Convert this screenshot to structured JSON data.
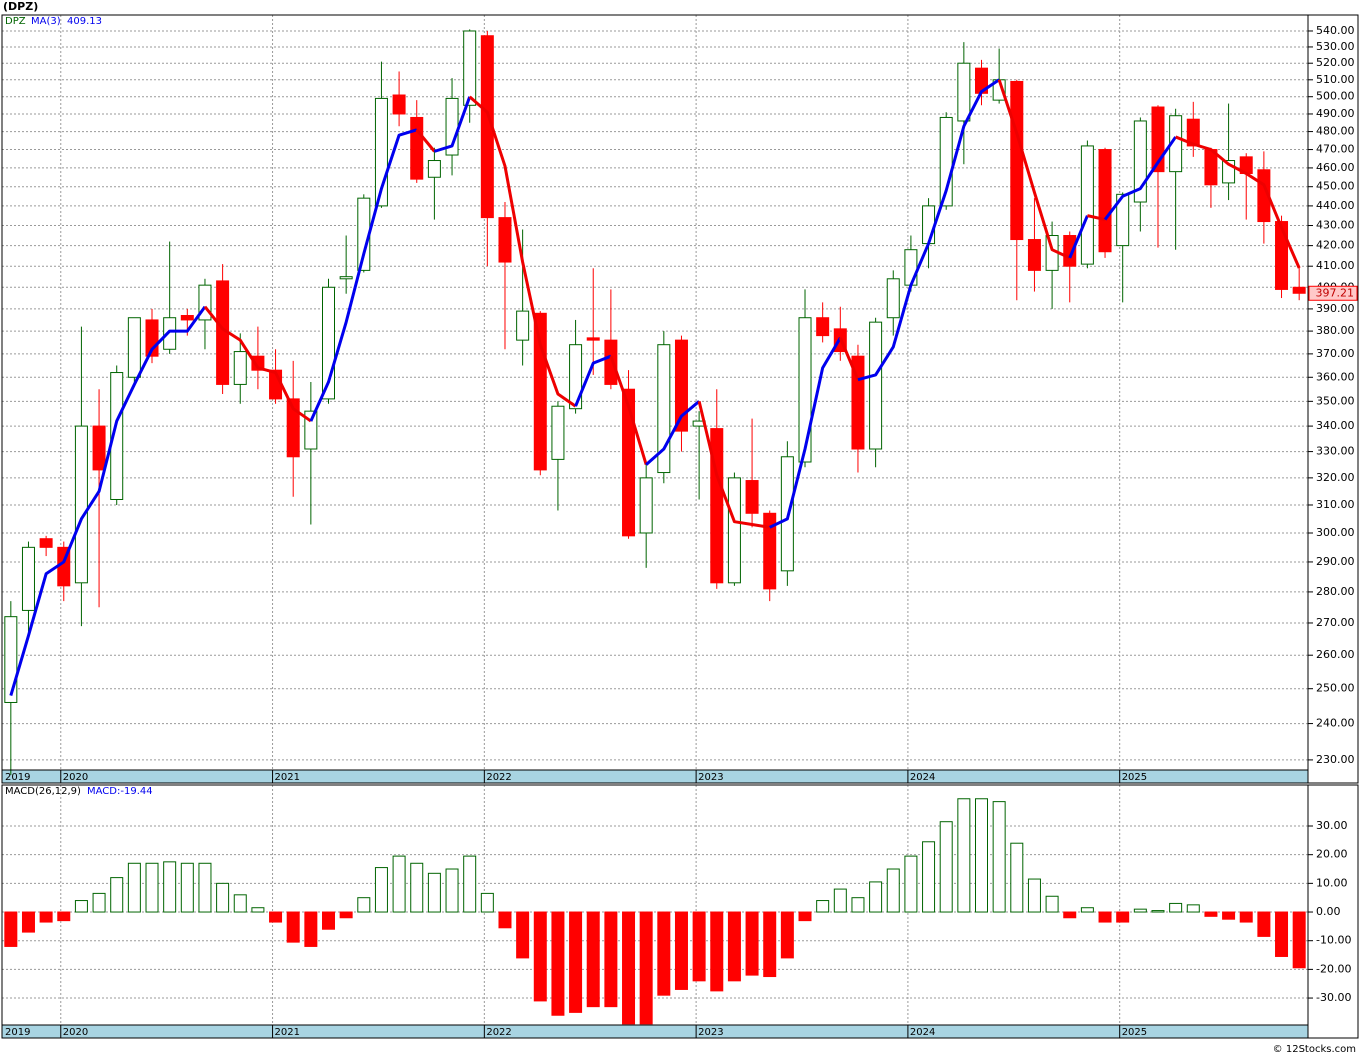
{
  "chart_data": [
    {
      "type": "candlestick",
      "title": "(DPZ)",
      "series_name": "DPZ",
      "log": true,
      "grid": true,
      "up_color": "#006400",
      "down_color": "#ff0000",
      "categories": [
        "2019",
        null,
        null,
        "2020",
        null,
        null,
        null,
        null,
        null,
        null,
        null,
        null,
        null,
        null,
        null,
        "2021",
        null,
        null,
        null,
        null,
        null,
        null,
        null,
        null,
        null,
        null,
        null,
        "2022",
        null,
        null,
        null,
        null,
        null,
        null,
        null,
        null,
        null,
        null,
        null,
        "2023",
        null,
        null,
        null,
        null,
        null,
        null,
        null,
        null,
        null,
        null,
        null,
        "2024",
        null,
        null,
        null,
        null,
        null,
        null,
        null,
        null,
        null,
        null,
        null,
        "2025",
        null,
        null,
        null,
        null,
        null,
        null,
        null,
        null,
        null,
        null
      ],
      "open": [
        246,
        274,
        298,
        295,
        283,
        340,
        312,
        360,
        385,
        372,
        387,
        385,
        403,
        357,
        369,
        363,
        351,
        331,
        351,
        404,
        408,
        440,
        501,
        488,
        455,
        467,
        495,
        537,
        434,
        376,
        388,
        327,
        347,
        377,
        376,
        355,
        300,
        322,
        376,
        340,
        339,
        283,
        319,
        307,
        287,
        326,
        386,
        381,
        369,
        331,
        386,
        401,
        421,
        440,
        486,
        517,
        498,
        509,
        423,
        408,
        425,
        411,
        470,
        420,
        442,
        494,
        458,
        487,
        470,
        452,
        466,
        459,
        432,
        400
      ],
      "high": [
        277,
        297,
        299,
        297,
        382,
        355,
        365,
        386,
        390,
        422,
        390,
        404,
        411,
        379,
        382,
        372,
        367,
        358,
        404,
        425,
        446,
        521,
        515,
        498,
        471,
        511,
        541,
        540,
        442,
        428,
        389,
        350,
        385,
        409,
        399,
        363,
        326,
        380,
        378,
        346,
        355,
        322,
        343,
        308,
        334,
        399,
        393,
        391,
        374,
        386,
        408,
        425,
        444,
        491,
        533,
        522,
        529,
        510,
        444,
        432,
        427,
        475,
        471,
        447,
        488,
        495,
        493,
        497,
        471,
        496,
        468,
        469,
        435,
        410
      ],
      "low": [
        226,
        265,
        292,
        277,
        269,
        275,
        310,
        356,
        366,
        370,
        378,
        372,
        353,
        349,
        355,
        349,
        313,
        303,
        349,
        397,
        407,
        439,
        483,
        452,
        433,
        456,
        485,
        410,
        372,
        365,
        321,
        308,
        345,
        361,
        355,
        298,
        288,
        318,
        330,
        312,
        281,
        282,
        302,
        277,
        282,
        324,
        375,
        367,
        322,
        324,
        378,
        398,
        409,
        438,
        462,
        495,
        496,
        394,
        398,
        390,
        393,
        409,
        414,
        393,
        427,
        419,
        418,
        466,
        439,
        443,
        433,
        421,
        395,
        394
      ],
      "close": [
        272,
        295,
        295,
        282,
        340,
        323,
        362,
        386,
        369,
        386,
        385,
        401,
        357,
        371,
        363,
        351,
        328,
        346,
        400,
        405,
        444,
        499,
        490,
        454,
        464,
        499,
        540,
        434,
        412,
        389,
        323,
        348,
        374,
        376,
        357,
        299,
        320,
        374,
        338,
        342,
        283,
        320,
        307,
        281,
        328,
        386,
        378,
        371,
        331,
        384,
        404,
        418,
        440,
        488,
        520,
        502,
        510,
        423,
        408,
        425,
        410,
        472,
        417,
        446,
        486,
        458,
        489,
        472,
        451,
        464,
        457,
        432,
        399,
        397.21
      ],
      "ma": {
        "name": "MA(3)",
        "up_color": "#0000ee",
        "down_color": "#ee0000",
        "values": [
          248,
          266,
          286,
          290,
          305,
          315,
          342,
          357,
          372,
          380,
          380,
          391,
          381,
          376,
          364,
          362,
          347,
          342,
          358,
          384,
          416,
          449,
          478,
          481,
          469,
          472,
          500,
          491,
          461,
          412,
          374,
          353,
          348,
          366,
          369,
          348,
          325,
          331,
          344,
          350,
          321,
          304,
          303,
          302,
          305,
          331,
          364,
          377,
          359,
          361,
          373,
          401,
          421,
          448,
          483,
          503,
          510,
          479,
          447,
          418,
          414,
          435,
          433,
          445,
          449,
          463,
          477,
          473,
          470,
          462,
          457,
          451,
          429,
          409.13
        ]
      },
      "ylim": [
        227.3,
        550.2
      ],
      "yticks": [
        {
          "value": 540,
          "label": "540.00"
        },
        {
          "value": 530,
          "label": "530.00"
        },
        {
          "value": 520,
          "label": "520.00"
        },
        {
          "value": 510,
          "label": "510.00"
        },
        {
          "value": 500,
          "label": "500.00"
        },
        {
          "value": 490,
          "label": "490.00"
        },
        {
          "value": 480,
          "label": "480.00"
        },
        {
          "value": 470,
          "label": "470.00"
        },
        {
          "value": 460,
          "label": "460.00"
        },
        {
          "value": 450,
          "label": "450.00"
        },
        {
          "value": 440,
          "label": "440.00"
        },
        {
          "value": 430,
          "label": "430.00"
        },
        {
          "value": 420,
          "label": "420.00"
        },
        {
          "value": 410,
          "label": "410.00"
        },
        {
          "value": 400,
          "label": "400.00"
        },
        {
          "value": 390,
          "label": "390.00"
        },
        {
          "value": 380,
          "label": "380.00"
        },
        {
          "value": 370,
          "label": "370.00"
        },
        {
          "value": 360,
          "label": "360.00"
        },
        {
          "value": 350,
          "label": "350.00"
        },
        {
          "value": 340,
          "label": "340.00"
        },
        {
          "value": 330,
          "label": "330.00"
        },
        {
          "value": 320,
          "label": "320.00"
        },
        {
          "value": 310,
          "label": "310.00"
        },
        {
          "value": 300,
          "label": "300.00"
        },
        {
          "value": 290,
          "label": "290.00"
        },
        {
          "value": 280,
          "label": "280.00"
        },
        {
          "value": 270,
          "label": "270.00"
        },
        {
          "value": 260,
          "label": "260.00"
        },
        {
          "value": 250,
          "label": "250.00"
        },
        {
          "value": 240,
          "label": "240.00"
        },
        {
          "value": 230,
          "label": "230.00"
        }
      ]
    },
    {
      "type": "bar",
      "name": "MACD(26,12,9)",
      "value_prefix": "MACD:",
      "grid": true,
      "up_color": "#006400",
      "down_color": "#ff0000",
      "categories": [
        "2019",
        null,
        null,
        "2020",
        null,
        null,
        null,
        null,
        null,
        null,
        null,
        null,
        null,
        null,
        null,
        "2021",
        null,
        null,
        null,
        null,
        null,
        null,
        null,
        null,
        null,
        null,
        null,
        "2022",
        null,
        null,
        null,
        null,
        null,
        null,
        null,
        null,
        null,
        null,
        null,
        "2023",
        null,
        null,
        null,
        null,
        null,
        null,
        null,
        null,
        null,
        null,
        null,
        "2024",
        null,
        null,
        null,
        null,
        null,
        null,
        null,
        null,
        null,
        null,
        null,
        "2025",
        null,
        null,
        null,
        null,
        null,
        null,
        null,
        null,
        null,
        null
      ],
      "values": [
        -12,
        -7,
        -3.5,
        -3,
        4,
        6.5,
        12,
        17,
        17,
        17.5,
        17,
        17,
        10,
        6,
        1.5,
        -3.5,
        -10.5,
        -12,
        -6,
        -2,
        5,
        15.5,
        19.5,
        17,
        13.5,
        15,
        19.5,
        6.5,
        -5.5,
        -16,
        -31,
        -36,
        -35,
        -33,
        -33,
        -39,
        -39,
        -29,
        -27,
        -24,
        -27.5,
        -24,
        -22,
        -22.5,
        -16,
        -3,
        4,
        8,
        5,
        10.5,
        15,
        19.5,
        24.5,
        31.5,
        39.5,
        39.5,
        38.5,
        24,
        11.5,
        5.5,
        -2,
        1.5,
        -3.5,
        -3.5,
        1,
        0.5,
        3,
        2.5,
        -1.5,
        -2.5,
        -3.5,
        -8.5,
        -15.5,
        -19.44
      ],
      "ylim": [
        -39.4,
        44.3
      ],
      "yticks": [
        {
          "value": 30,
          "label": "30.00"
        },
        {
          "value": 20,
          "label": "20.00"
        },
        {
          "value": 10,
          "label": "10.00"
        },
        {
          "value": 0,
          "label": "0.00"
        },
        {
          "value": -10,
          "label": "-10.00"
        },
        {
          "value": -20,
          "label": "-20.00"
        },
        {
          "value": -30,
          "label": "-30.00"
        }
      ]
    }
  ],
  "credit": "© 12Stocks.com"
}
